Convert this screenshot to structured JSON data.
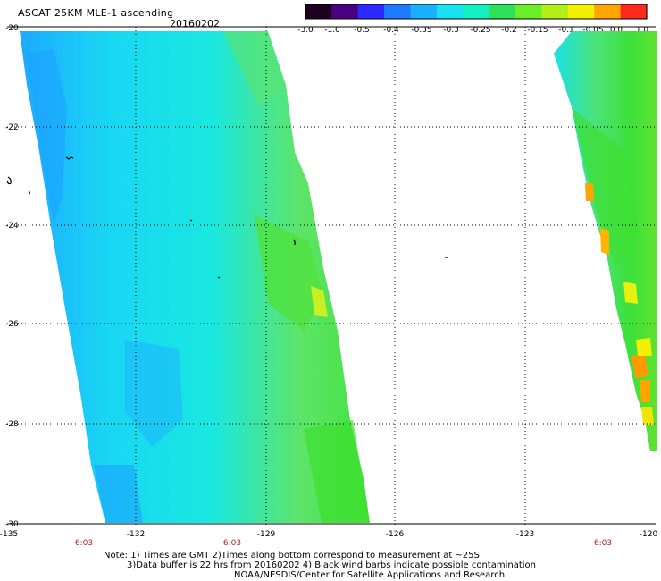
{
  "header": {
    "title": "ASCAT 25KM MLE-1 ascending",
    "date": "20160202"
  },
  "colorbar": {
    "labels": [
      "-3.0",
      "-1.0",
      "-0.5",
      "-0.4",
      "-0.35",
      "-0.3",
      "-0.25",
      "-0.2",
      "-0.15",
      "-0.1",
      "-0.05",
      "0.0",
      "1.0"
    ],
    "colors": [
      "#200020",
      "#4b0082",
      "#2a2aff",
      "#1e7bff",
      "#18b0ff",
      "#19e2f0",
      "#14f0c0",
      "#2de15a",
      "#6aee28",
      "#b0f018",
      "#f0f000",
      "#ffa500",
      "#ff2a1e"
    ]
  },
  "axes": {
    "x_ticks": [
      "-135",
      "-132",
      "-129",
      "-126",
      "-123",
      "-120"
    ],
    "y_ticks": [
      "-20",
      "-22",
      "-24",
      "-26",
      "-28",
      "-30"
    ],
    "time_labels": [
      "6:03",
      "6:03",
      "6:03"
    ]
  },
  "notes": [
    "Note: 1) Times are GMT 2)Times along bottom correspond to measurement at ~25S",
    "3)Data buffer is 22 hrs from 20160202 4) Black wind barbs indicate possible contamination",
    "NOAA/NESDIS/Center for Satellite Applications and Research"
  ]
}
